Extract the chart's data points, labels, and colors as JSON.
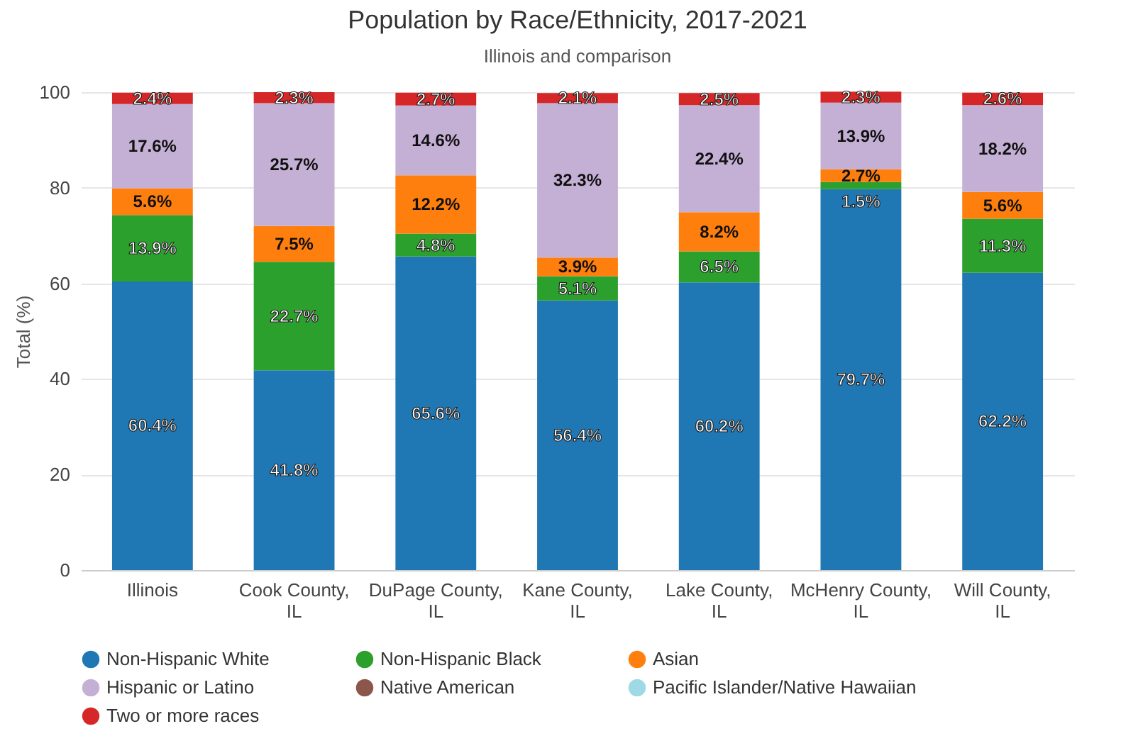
{
  "chart_data": {
    "type": "bar",
    "stacked": true,
    "title": "Population by Race/Ethnicity, 2017-2021",
    "subtitle": "Illinois and comparison",
    "ylabel": "Total (%)",
    "categories": [
      "Illinois",
      "Cook County, IL",
      "DuPage County, IL",
      "Kane County, IL",
      "Lake County, IL",
      "McHenry County, IL",
      "Will County, IL"
    ],
    "ylim": [
      0,
      100
    ],
    "yticks": [
      0,
      20,
      40,
      60,
      80,
      100
    ],
    "grid": "y",
    "legend": "bottom",
    "series": [
      {
        "name": "Non-Hispanic White",
        "color": "#1f77b4",
        "values": [
          60.4,
          41.8,
          65.6,
          56.4,
          60.2,
          79.7,
          62.2
        ],
        "value_labels": [
          "60.4%",
          "41.8%",
          "65.6%",
          "56.4%",
          "60.2%",
          "79.7%",
          "62.2%"
        ]
      },
      {
        "name": "Non-Hispanic Black",
        "color": "#2ca02c",
        "values": [
          13.9,
          22.7,
          4.8,
          5.1,
          6.5,
          1.5,
          11.3
        ],
        "value_labels": [
          "13.9%",
          "22.7%",
          "4.8%",
          "5.1%",
          "6.5%",
          "1.5%",
          "11.3%"
        ]
      },
      {
        "name": "Asian",
        "color": "#ff7f0e",
        "values": [
          5.6,
          7.5,
          12.2,
          3.9,
          8.2,
          2.7,
          5.6
        ],
        "value_labels": [
          "5.6%",
          "7.5%",
          "12.2%",
          "3.9%",
          "8.2%",
          "2.7%",
          "5.6%"
        ]
      },
      {
        "name": "Hispanic or Latino",
        "color": "#c5b0d5",
        "values": [
          17.6,
          25.7,
          14.6,
          32.3,
          22.4,
          13.9,
          18.2
        ],
        "value_labels": [
          "17.6%",
          "25.7%",
          "14.6%",
          "32.3%",
          "22.4%",
          "13.9%",
          "18.2%"
        ]
      },
      {
        "name": "Native American",
        "color": "#8c564b",
        "values": [
          null,
          null,
          null,
          null,
          null,
          null,
          null
        ]
      },
      {
        "name": "Pacific Islander/Native Hawaiian",
        "color": "#9edae5",
        "values": [
          null,
          null,
          null,
          null,
          null,
          null,
          null
        ]
      },
      {
        "name": "Two or more races",
        "color": "#d62728",
        "values": [
          2.4,
          2.3,
          2.7,
          2.1,
          2.5,
          2.3,
          2.6
        ],
        "value_labels": [
          "2.4%",
          "2.3%",
          "2.7%",
          "2.1%",
          "2.5%",
          "2.3%",
          "2.6%"
        ]
      }
    ]
  }
}
